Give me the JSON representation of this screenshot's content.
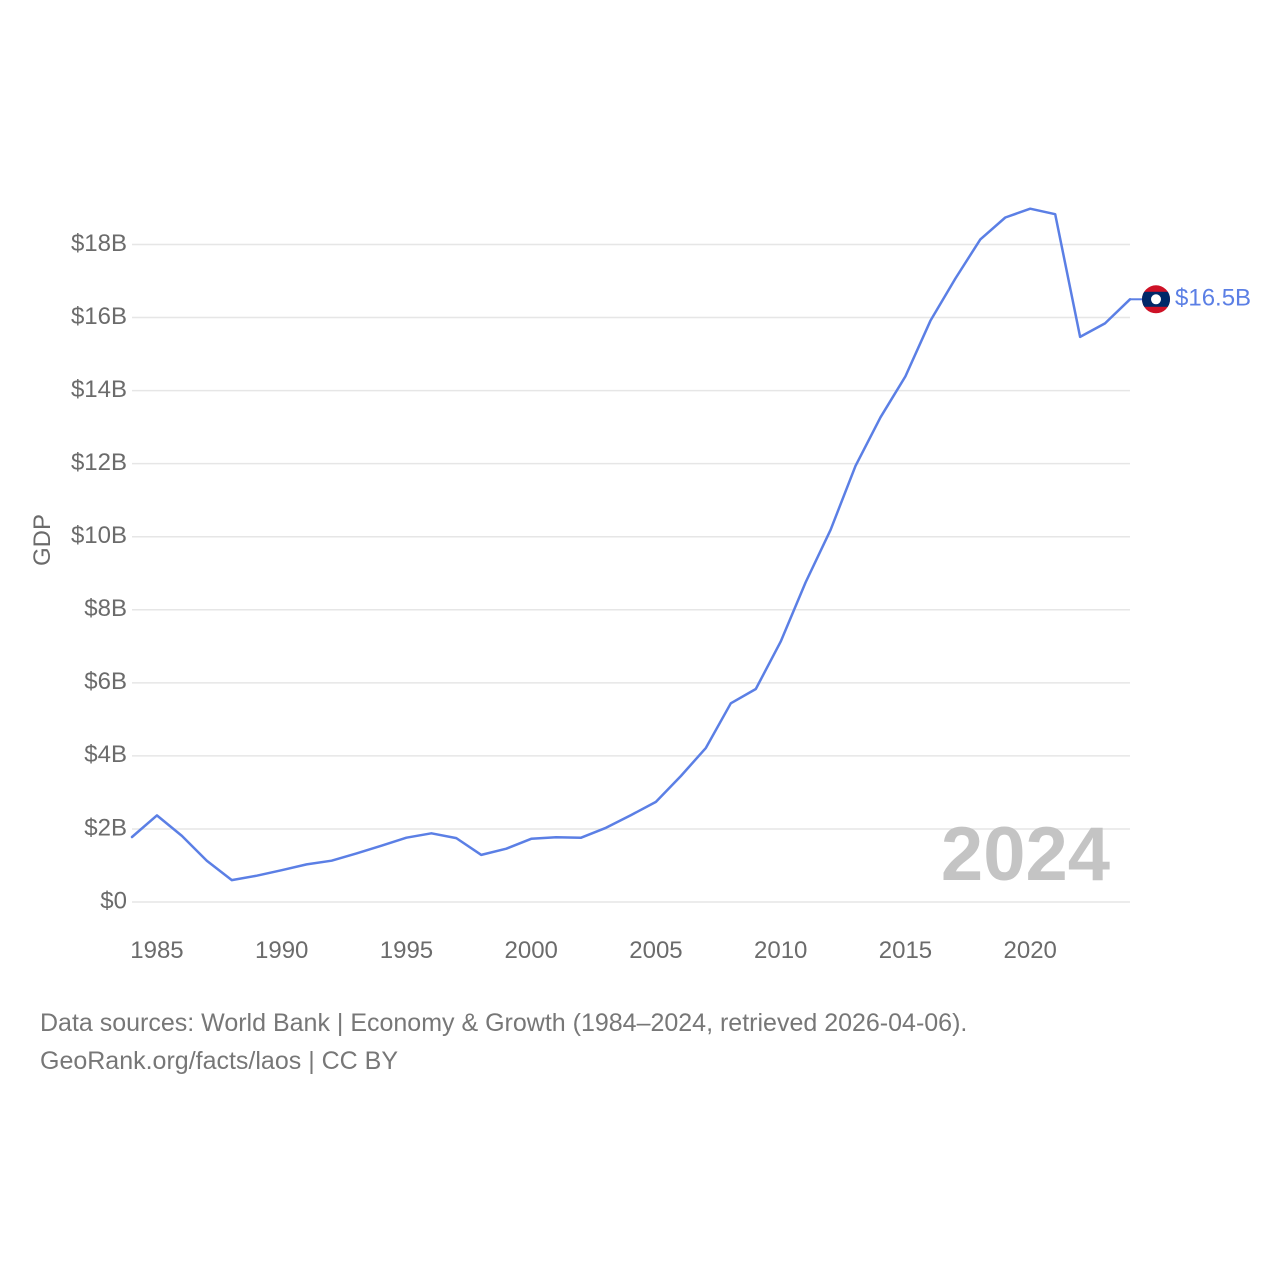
{
  "chart_data": {
    "type": "line",
    "title": "",
    "xlabel": "",
    "ylabel": "GDP",
    "xlim": [
      1984,
      2024
    ],
    "ylim": [
      0,
      19000000000
    ],
    "grid": true,
    "y_ticks": [
      {
        "value": 0,
        "label": "$0"
      },
      {
        "value": 2000000000,
        "label": "$2B"
      },
      {
        "value": 4000000000,
        "label": "$4B"
      },
      {
        "value": 6000000000,
        "label": "$6B"
      },
      {
        "value": 8000000000,
        "label": "$8B"
      },
      {
        "value": 10000000000,
        "label": "$10B"
      },
      {
        "value": 12000000000,
        "label": "$12B"
      },
      {
        "value": 14000000000,
        "label": "$14B"
      },
      {
        "value": 16000000000,
        "label": "$16B"
      },
      {
        "value": 18000000000,
        "label": "$18B"
      }
    ],
    "x_ticks": [
      {
        "value": 1985,
        "label": "1985"
      },
      {
        "value": 1990,
        "label": "1990"
      },
      {
        "value": 1995,
        "label": "1995"
      },
      {
        "value": 2000,
        "label": "2000"
      },
      {
        "value": 2005,
        "label": "2005"
      },
      {
        "value": 2010,
        "label": "2010"
      },
      {
        "value": 2015,
        "label": "2015"
      },
      {
        "value": 2020,
        "label": "2020"
      }
    ],
    "series": [
      {
        "name": "Laos",
        "color": "#5b7fe5",
        "x": [
          1984,
          1985,
          1986,
          1987,
          1988,
          1989,
          1990,
          1991,
          1992,
          1993,
          1994,
          1995,
          1996,
          1997,
          1998,
          1999,
          2000,
          2001,
          2002,
          2003,
          2004,
          2005,
          2006,
          2007,
          2008,
          2009,
          2010,
          2011,
          2012,
          2013,
          2014,
          2015,
          2016,
          2017,
          2018,
          2019,
          2020,
          2021,
          2022,
          2023,
          2024
        ],
        "values": [
          1780000000,
          2370000000,
          1810000000,
          1130000000,
          600000000,
          720000000,
          870000000,
          1030000000,
          1130000000,
          1330000000,
          1540000000,
          1760000000,
          1880000000,
          1750000000,
          1290000000,
          1460000000,
          1730000000,
          1770000000,
          1760000000,
          2030000000,
          2380000000,
          2740000000,
          3450000000,
          4220000000,
          5440000000,
          5830000000,
          7130000000,
          8750000000,
          10190000000,
          11940000000,
          13270000000,
          14390000000,
          15910000000,
          17070000000,
          18140000000,
          18740000000,
          18980000000,
          18830000000,
          15470000000,
          15840000000,
          16500000000
        ],
        "end_label": "$16.5B"
      }
    ],
    "watermark_year": "2024"
  },
  "footer": {
    "line1": "Data sources: World Bank | Economy & Growth (1984–2024, retrieved 2026-04-06).",
    "line2": "GeoRank.org/facts/laos | CC BY"
  },
  "colors": {
    "series": "#5b7fe5",
    "flag_red": "#ce1126",
    "flag_blue": "#002868",
    "flag_white": "#ffffff"
  }
}
